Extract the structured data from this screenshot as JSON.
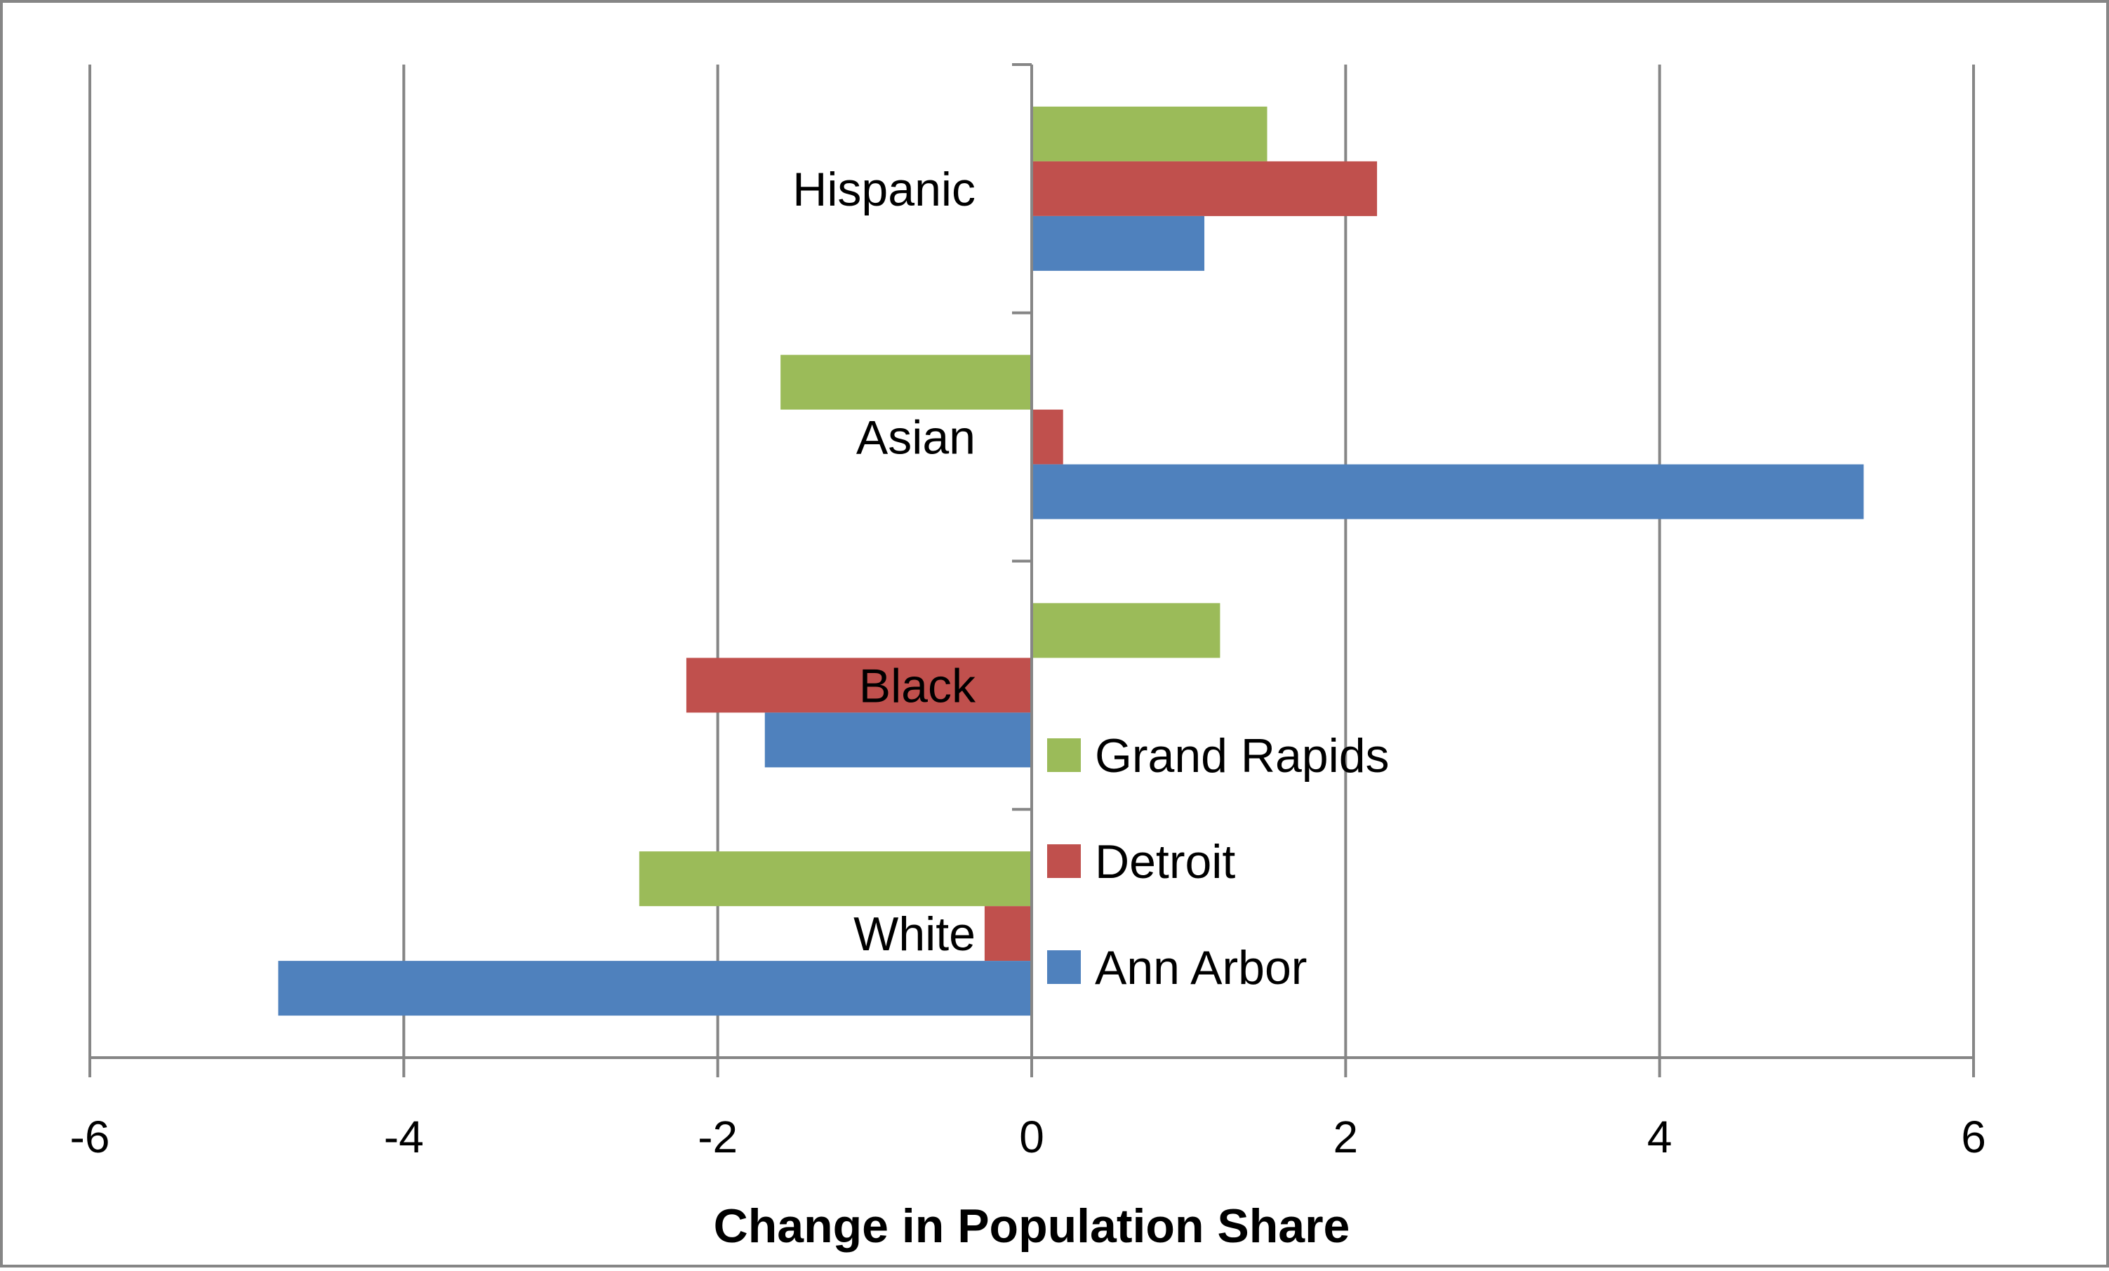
{
  "chart_data": {
    "type": "bar",
    "orientation": "horizontal",
    "categories": [
      "Hispanic",
      "Asian",
      "Black",
      "White"
    ],
    "series": [
      {
        "name": "Grand Rapids",
        "color": "#9BBB59",
        "values": [
          1.5,
          -1.6,
          1.2,
          -2.5
        ]
      },
      {
        "name": "Detroit",
        "color": "#C0504D",
        "values": [
          2.2,
          0.2,
          -2.2,
          -0.3
        ]
      },
      {
        "name": "Ann Arbor",
        "color": "#4F81BD",
        "values": [
          1.1,
          5.3,
          -1.7,
          -4.8
        ]
      }
    ],
    "x_ticks": [
      -6,
      -4,
      -2,
      0,
      2,
      4,
      6
    ],
    "xlabel": "Change in Population Share",
    "xlim": [
      -6,
      6
    ],
    "grid": "vertical",
    "legend_position": "center-right"
  },
  "colors": {
    "grid": "#868686",
    "border": "#868686"
  }
}
